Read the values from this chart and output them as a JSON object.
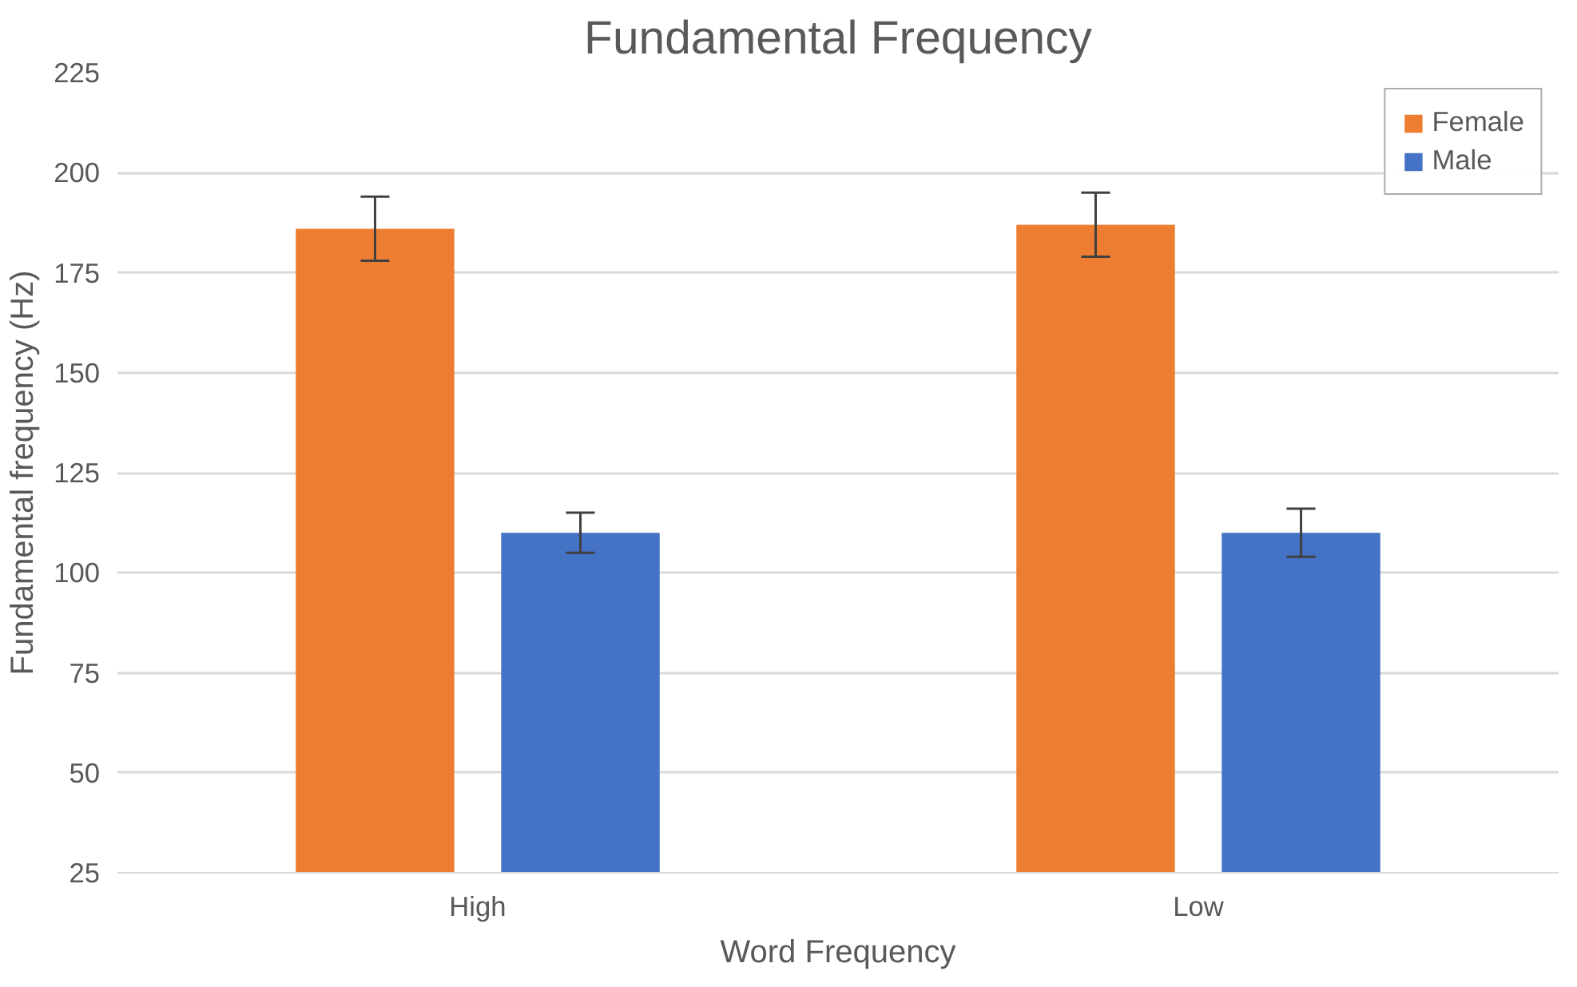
{
  "chart_data": {
    "type": "bar",
    "title": "Fundamental Frequency",
    "xlabel": "Word Frequency",
    "ylabel": "Fundamental frequency (Hz)",
    "categories": [
      "High",
      "Low"
    ],
    "series": [
      {
        "name": "Female",
        "color": "#ed7d31",
        "values": [
          186,
          187
        ],
        "errors": [
          8,
          8
        ]
      },
      {
        "name": "Male",
        "color": "#4472c4",
        "values": [
          110,
          110
        ],
        "errors": [
          5,
          6
        ]
      }
    ],
    "ylim": [
      25,
      225
    ],
    "yticks": [
      25,
      50,
      75,
      100,
      125,
      150,
      175,
      200,
      225
    ],
    "grid": "y",
    "legend": "top right"
  }
}
